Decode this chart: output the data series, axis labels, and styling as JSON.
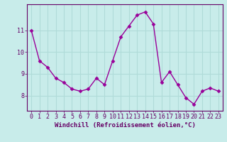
{
  "x": [
    0,
    1,
    2,
    3,
    4,
    5,
    6,
    7,
    8,
    9,
    10,
    11,
    12,
    13,
    14,
    15,
    16,
    17,
    18,
    19,
    20,
    21,
    22,
    23
  ],
  "y": [
    11.0,
    9.6,
    9.3,
    8.8,
    8.6,
    8.3,
    8.2,
    8.3,
    8.8,
    8.5,
    9.6,
    10.7,
    11.2,
    11.7,
    11.85,
    11.3,
    8.6,
    9.1,
    8.5,
    7.9,
    7.6,
    8.2,
    8.35,
    8.2
  ],
  "line_color": "#990099",
  "marker": "D",
  "marker_size": 2.5,
  "bg_color": "#c8ecea",
  "grid_color": "#b0dbd8",
  "xlabel": "Windchill (Refroidissement éolien,°C)",
  "xticks": [
    0,
    1,
    2,
    3,
    4,
    5,
    6,
    7,
    8,
    9,
    10,
    11,
    12,
    13,
    14,
    15,
    16,
    17,
    18,
    19,
    20,
    21,
    22,
    23
  ],
  "yticks": [
    8,
    9,
    10,
    11
  ],
  "ylim": [
    7.3,
    12.2
  ],
  "xlim": [
    -0.5,
    23.5
  ],
  "xlabel_color": "#660066",
  "tick_color": "#660066",
  "xlabel_fontsize": 6.5,
  "tick_fontsize": 6.0,
  "spine_color": "#660066",
  "line_width": 1.0
}
